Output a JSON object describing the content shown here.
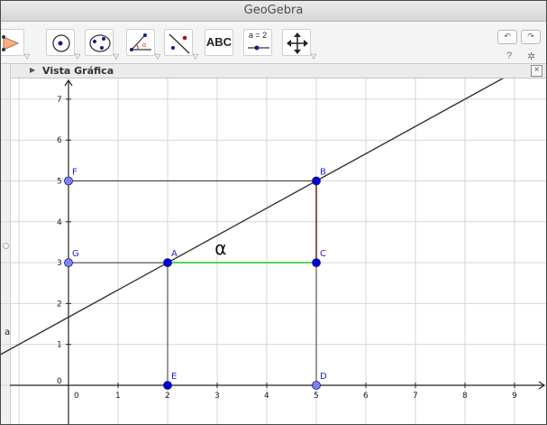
{
  "window": {
    "title": "GeoGebra"
  },
  "toolbar": {
    "tools": [
      {
        "name": "move-tool",
        "icon": "move-arrow-icon"
      },
      {
        "name": "point-tool",
        "icon": "point-icon"
      },
      {
        "name": "circle-tool",
        "icon": "circle-icon"
      },
      {
        "name": "conic-tool",
        "icon": "ellipse-icon"
      },
      {
        "name": "angle-tool",
        "icon": "angle-icon"
      },
      {
        "name": "reflect-tool",
        "icon": "reflect-line-icon"
      },
      {
        "name": "text-tool",
        "label": "ABC"
      },
      {
        "name": "slider-tool",
        "label": "a = 2"
      },
      {
        "name": "move-view-tool",
        "icon": "move-graphics-icon"
      }
    ],
    "undo_icon": "undo-icon",
    "redo_icon": "redo-icon",
    "help_label": "?",
    "settings_icon": "gear-icon"
  },
  "view": {
    "title": "Vista Gráfica",
    "close_icon": "close-icon"
  },
  "chart_data": {
    "type": "scatter",
    "x_ticks": [
      "0",
      "1",
      "2",
      "3",
      "4",
      "5",
      "6",
      "7",
      "8",
      "9"
    ],
    "y_ticks": [
      "0",
      "1",
      "2",
      "3",
      "4",
      "5",
      "6",
      "7"
    ],
    "xlim": [
      -1,
      9.6
    ],
    "ylim": [
      -0.7,
      7.6
    ],
    "grid": true,
    "points": [
      {
        "label": "A",
        "x": 2,
        "y": 3,
        "color": "#0000e0"
      },
      {
        "label": "B",
        "x": 5,
        "y": 5,
        "color": "#0000e0"
      },
      {
        "label": "C",
        "x": 5,
        "y": 3,
        "color": "#0000e0"
      },
      {
        "label": "D",
        "x": 5,
        "y": 0,
        "color": "#8080ff"
      },
      {
        "label": "E",
        "x": 2,
        "y": 0,
        "color": "#0000e0"
      },
      {
        "label": "F",
        "x": 0,
        "y": 5,
        "color": "#8080ff"
      },
      {
        "label": "G",
        "x": 0,
        "y": 3,
        "color": "#8080ff"
      }
    ],
    "line": {
      "label": "a",
      "slope": 0.6667,
      "intercept": 1.6667,
      "color": "#333333"
    },
    "segments": [
      {
        "from": "A",
        "to": "C",
        "color": "#33cc33"
      },
      {
        "from": "C",
        "to": "B",
        "color": "#cc3300"
      },
      {
        "from": "F",
        "to": "B",
        "color": "#333333"
      },
      {
        "from": "G",
        "to": "A",
        "color": "#333333"
      },
      {
        "from": "A",
        "to": "E",
        "color": "#333333"
      },
      {
        "from": "B",
        "to": "D",
        "color": "#333333"
      }
    ],
    "annotation": {
      "text": "α",
      "x": 2.95,
      "y": 3.2
    }
  }
}
